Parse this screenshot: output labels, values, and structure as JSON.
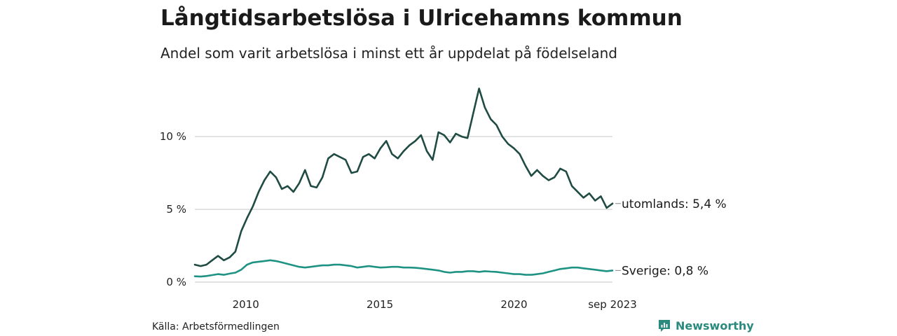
{
  "title": "Långtidsarbetslösa i Ulricehamns kommun",
  "subtitle": "Andel som varit arbetslösa i minst ett år uppdelat på födelseland",
  "source": "Källa: Arbetsförmedlingen",
  "brand": {
    "name": "Newsworthy",
    "icon": "newsworthy-logo-icon",
    "color": "#2a8a7e"
  },
  "chart_data": {
    "type": "line",
    "title": "Långtidsarbetslösa i Ulricehamns kommun",
    "xlabel": "",
    "ylabel": "",
    "x_start": 2008.1,
    "x_end": 2023.67,
    "xlim": [
      2008.1,
      2023.67
    ],
    "ylim": [
      0,
      14
    ],
    "yticks": [
      {
        "value": 0,
        "label": "0 %"
      },
      {
        "value": 5,
        "label": "5 %"
      },
      {
        "value": 10,
        "label": "10 %"
      }
    ],
    "xticks": [
      {
        "value": 2010,
        "label": "2010"
      },
      {
        "value": 2015,
        "label": "2015"
      },
      {
        "value": 2020,
        "label": "2020"
      },
      {
        "value": 2023.67,
        "label": "sep 2023"
      }
    ],
    "grid": true,
    "series": [
      {
        "name": "utomlands",
        "end_label": "utomlands: 5,4 %",
        "color": "#1f4b43",
        "values": [
          1.2,
          1.1,
          1.2,
          1.5,
          1.8,
          1.5,
          1.7,
          2.1,
          3.5,
          4.4,
          5.2,
          6.2,
          7.0,
          7.6,
          7.2,
          6.4,
          6.6,
          6.2,
          6.8,
          7.7,
          6.6,
          6.5,
          7.2,
          8.5,
          8.8,
          8.6,
          8.4,
          7.5,
          7.6,
          8.6,
          8.8,
          8.5,
          9.2,
          9.7,
          8.8,
          8.5,
          9.0,
          9.4,
          9.7,
          10.1,
          9.0,
          8.4,
          10.3,
          10.1,
          9.6,
          10.2,
          10.0,
          9.9,
          11.6,
          13.3,
          12.0,
          11.2,
          10.8,
          10.0,
          9.5,
          9.2,
          8.8,
          8.0,
          7.3,
          7.7,
          7.3,
          7.0,
          7.2,
          7.8,
          7.6,
          6.6,
          6.2,
          5.8,
          6.1,
          5.6,
          5.9,
          5.1,
          5.4
        ],
        "labels_on_line": false
      },
      {
        "name": "Sverige",
        "end_label": "Sverige: 0,8 %",
        "color": "#1e9384",
        "values": [
          0.4,
          0.38,
          0.42,
          0.48,
          0.55,
          0.5,
          0.58,
          0.65,
          0.85,
          1.2,
          1.35,
          1.4,
          1.45,
          1.5,
          1.45,
          1.35,
          1.25,
          1.15,
          1.05,
          1.0,
          1.05,
          1.1,
          1.15,
          1.15,
          1.2,
          1.2,
          1.15,
          1.1,
          1.0,
          1.05,
          1.1,
          1.05,
          1.0,
          1.02,
          1.05,
          1.05,
          1.0,
          1.0,
          0.98,
          0.95,
          0.9,
          0.85,
          0.8,
          0.7,
          0.65,
          0.7,
          0.7,
          0.75,
          0.75,
          0.7,
          0.75,
          0.72,
          0.7,
          0.65,
          0.6,
          0.55,
          0.55,
          0.5,
          0.5,
          0.55,
          0.6,
          0.7,
          0.8,
          0.9,
          0.95,
          1.0,
          1.0,
          0.95,
          0.9,
          0.85,
          0.8,
          0.75,
          0.8
        ]
      }
    ]
  }
}
